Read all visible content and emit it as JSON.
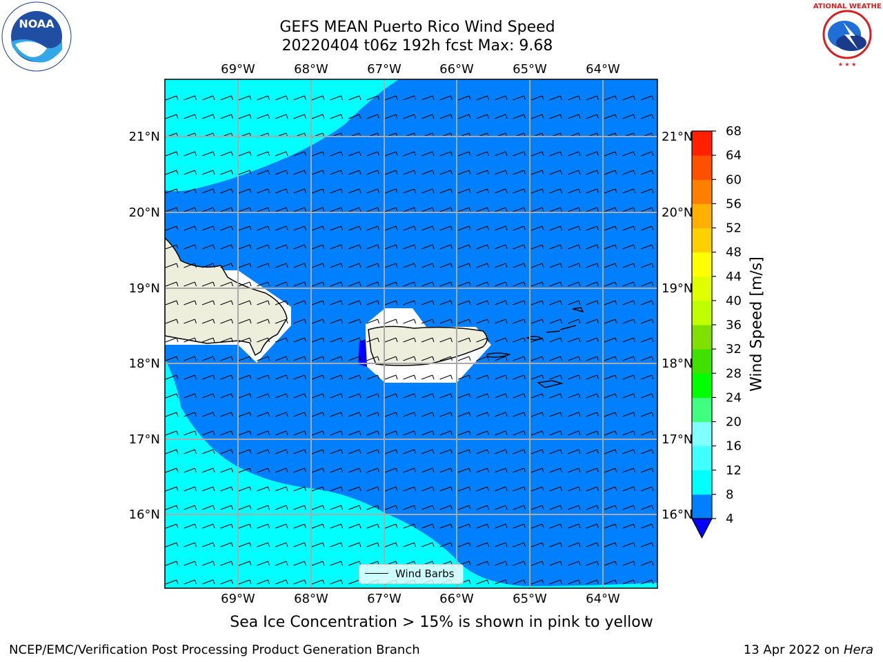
{
  "header": {
    "title_line1": "GEFS MEAN Puerto Rico Wind Speed",
    "title_line2": "20220404 t06z 192h fcst   Max: 9.68"
  },
  "map": {
    "lon_ticks": [
      "69°W",
      "68°W",
      "67°W",
      "66°W",
      "65°W",
      "64°W"
    ],
    "lat_ticks": [
      "21°N",
      "20°N",
      "19°N",
      "18°N",
      "17°N",
      "16°N"
    ],
    "fill_colors": {
      "cyan_band": "#00ffff",
      "blue_band": "#0080ff",
      "low_band": "#0000ff",
      "land": "#eeeedd"
    }
  },
  "legend": {
    "label": "Wind Barbs"
  },
  "colorbar": {
    "label": "Wind Speed [m/s]",
    "ticks": [
      "4",
      "8",
      "12",
      "16",
      "20",
      "24",
      "28",
      "32",
      "36",
      "40",
      "44",
      "48",
      "52",
      "56",
      "60",
      "64",
      "68"
    ],
    "colors": [
      "#0080ff",
      "#00ffff",
      "#40ffff",
      "#80ffff",
      "#40ff80",
      "#00ff00",
      "#40e000",
      "#80e000",
      "#c0ff00",
      "#e0ff00",
      "#ffff00",
      "#ffd000",
      "#ffb000",
      "#ff8000",
      "#ff5000",
      "#ff2000",
      "#ff0000"
    ],
    "extend_color": "#0000ff"
  },
  "subcaption": "Sea Ice Concentration > 15% is shown in pink to yellow",
  "footer": {
    "left": "NCEP/EMC/Verification Post Processing Product Generation Branch",
    "date": "13 Apr 2022 on",
    "machine": "Hera"
  },
  "logos": {
    "left": "NOAA",
    "right_text": "NATIONAL WEATHER SERVICE"
  }
}
